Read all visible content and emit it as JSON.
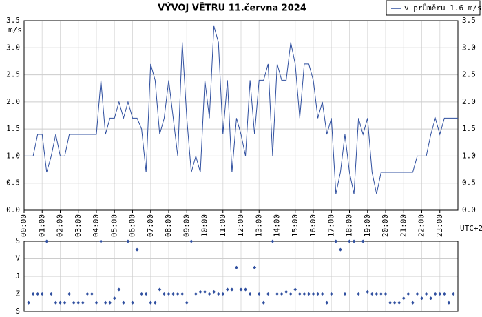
{
  "chart_data": [
    {
      "type": "line",
      "title": "VÝVOJ VĚTRU  11.června 2024",
      "y_label": "m/s",
      "x_note": "UTC+2",
      "legend": "v průměru 1.6 m/s",
      "legend_position": "top right",
      "grid": true,
      "xlim": [
        0,
        1440
      ],
      "xticks": [
        {
          "value": 0,
          "label": "00:00"
        },
        {
          "value": 60,
          "label": "01:00"
        },
        {
          "value": 120,
          "label": "02:00"
        },
        {
          "value": 180,
          "label": "03:00"
        },
        {
          "value": 240,
          "label": "04:00"
        },
        {
          "value": 300,
          "label": "05:00"
        },
        {
          "value": 360,
          "label": "06:00"
        },
        {
          "value": 420,
          "label": "07:00"
        },
        {
          "value": 480,
          "label": "08:00"
        },
        {
          "value": 540,
          "label": "09:00"
        },
        {
          "value": 600,
          "label": "10:00"
        },
        {
          "value": 660,
          "label": "11:00"
        },
        {
          "value": 720,
          "label": "12:00"
        },
        {
          "value": 780,
          "label": "13:00"
        },
        {
          "value": 840,
          "label": "14:00"
        },
        {
          "value": 900,
          "label": "15:00"
        },
        {
          "value": 960,
          "label": "16:00"
        },
        {
          "value": 1020,
          "label": "17:00"
        },
        {
          "value": 1080,
          "label": "18:00"
        },
        {
          "value": 1140,
          "label": "19:00"
        },
        {
          "value": 1200,
          "label": "20:00"
        },
        {
          "value": 1260,
          "label": "21:00"
        },
        {
          "value": 1320,
          "label": "22:00"
        },
        {
          "value": 1380,
          "label": "23:00"
        }
      ],
      "ylim": [
        0,
        3.5
      ],
      "yticks": [
        {
          "value": 0,
          "label": "0.0"
        },
        0.5,
        {
          "value": 1,
          "label": "1.0"
        },
        1.5,
        {
          "value": 2,
          "label": "2.0"
        },
        2.5,
        {
          "value": 3,
          "label": "3.0"
        },
        3.5
      ],
      "series": [
        {
          "name": "v průměru 1.6 m/s",
          "color": "#2f4f9f",
          "x": [
            0,
            30,
            45,
            60,
            75,
            90,
            105,
            120,
            135,
            150,
            240,
            255,
            270,
            285,
            300,
            315,
            330,
            345,
            360,
            375,
            390,
            405,
            420,
            435,
            450,
            465,
            480,
            495,
            510,
            525,
            540,
            555,
            570,
            585,
            600,
            615,
            630,
            645,
            660,
            675,
            690,
            705,
            720,
            735,
            750,
            765,
            780,
            795,
            810,
            825,
            840,
            855,
            870,
            885,
            900,
            915,
            930,
            945,
            960,
            975,
            990,
            1005,
            1020,
            1035,
            1050,
            1065,
            1080,
            1095,
            1110,
            1125,
            1140,
            1155,
            1170,
            1185,
            1290,
            1305,
            1335,
            1350,
            1365,
            1380,
            1395,
            1440
          ],
          "values": [
            1.0,
            1.0,
            1.4,
            1.4,
            0.7,
            1.0,
            1.4,
            1.0,
            1.0,
            1.4,
            1.4,
            2.4,
            1.4,
            1.7,
            1.7,
            2.0,
            1.7,
            2.0,
            1.7,
            1.7,
            1.5,
            0.7,
            2.7,
            2.4,
            1.4,
            1.7,
            2.4,
            1.7,
            1.0,
            3.1,
            1.7,
            0.7,
            1.0,
            0.7,
            2.4,
            1.7,
            3.4,
            3.1,
            1.4,
            2.4,
            0.7,
            1.7,
            1.4,
            1.0,
            2.4,
            1.4,
            2.4,
            2.4,
            2.7,
            1.0,
            2.7,
            2.4,
            2.4,
            3.1,
            2.7,
            1.7,
            2.7,
            2.7,
            2.4,
            1.7,
            2.0,
            1.4,
            1.7,
            0.3,
            0.7,
            1.4,
            0.7,
            0.3,
            1.7,
            1.4,
            1.7,
            0.7,
            0.3,
            0.7,
            0.7,
            1.0,
            1.0,
            1.4,
            1.7,
            1.4,
            1.7,
            1.7
          ]
        }
      ]
    },
    {
      "type": "scatter",
      "grid": true,
      "xlim": [
        0,
        1440
      ],
      "ylim": [
        0,
        360
      ],
      "yticks": [
        {
          "value": 0,
          "label": "S"
        },
        {
          "value": 90,
          "label": "V"
        },
        {
          "value": 180,
          "label": "J"
        },
        {
          "value": 270,
          "label": "Z"
        },
        {
          "value": 360,
          "label": "S"
        }
      ],
      "series": [
        {
          "color": "#2f4f9f",
          "x": [
            15,
            30,
            45,
            60,
            75,
            90,
            105,
            120,
            135,
            150,
            165,
            180,
            195,
            210,
            225,
            240,
            255,
            270,
            285,
            300,
            315,
            330,
            345,
            360,
            375,
            390,
            405,
            420,
            435,
            450,
            465,
            480,
            495,
            510,
            525,
            540,
            555,
            570,
            585,
            600,
            615,
            630,
            645,
            660,
            675,
            690,
            705,
            720,
            735,
            750,
            765,
            780,
            795,
            810,
            825,
            840,
            855,
            870,
            885,
            900,
            915,
            930,
            945,
            960,
            975,
            990,
            1005,
            1020,
            1035,
            1050,
            1065,
            1080,
            1095,
            1110,
            1125,
            1140,
            1155,
            1170,
            1185,
            1200,
            1215,
            1230,
            1245,
            1260,
            1275,
            1290,
            1305,
            1320,
            1335,
            1350,
            1365,
            1380,
            1395,
            1410,
            1425
          ],
          "values": [
            315,
            270,
            270,
            270,
            0,
            270,
            315,
            315,
            315,
            270,
            315,
            315,
            315,
            270,
            270,
            315,
            0,
            315,
            315,
            292,
            247,
            315,
            0,
            315,
            43,
            270,
            270,
            315,
            315,
            247,
            270,
            270,
            270,
            270,
            270,
            315,
            0,
            270,
            259,
            259,
            270,
            259,
            270,
            270,
            247,
            247,
            135,
            247,
            247,
            270,
            135,
            270,
            315,
            270,
            0,
            270,
            270,
            259,
            270,
            247,
            270,
            270,
            270,
            270,
            270,
            270,
            315,
            270,
            0,
            43,
            270,
            0,
            0,
            270,
            0,
            259,
            270,
            270,
            270,
            270,
            315,
            315,
            315,
            292,
            270,
            315,
            270,
            292,
            270,
            292,
            270,
            270,
            270,
            315,
            270
          ]
        }
      ]
    }
  ]
}
